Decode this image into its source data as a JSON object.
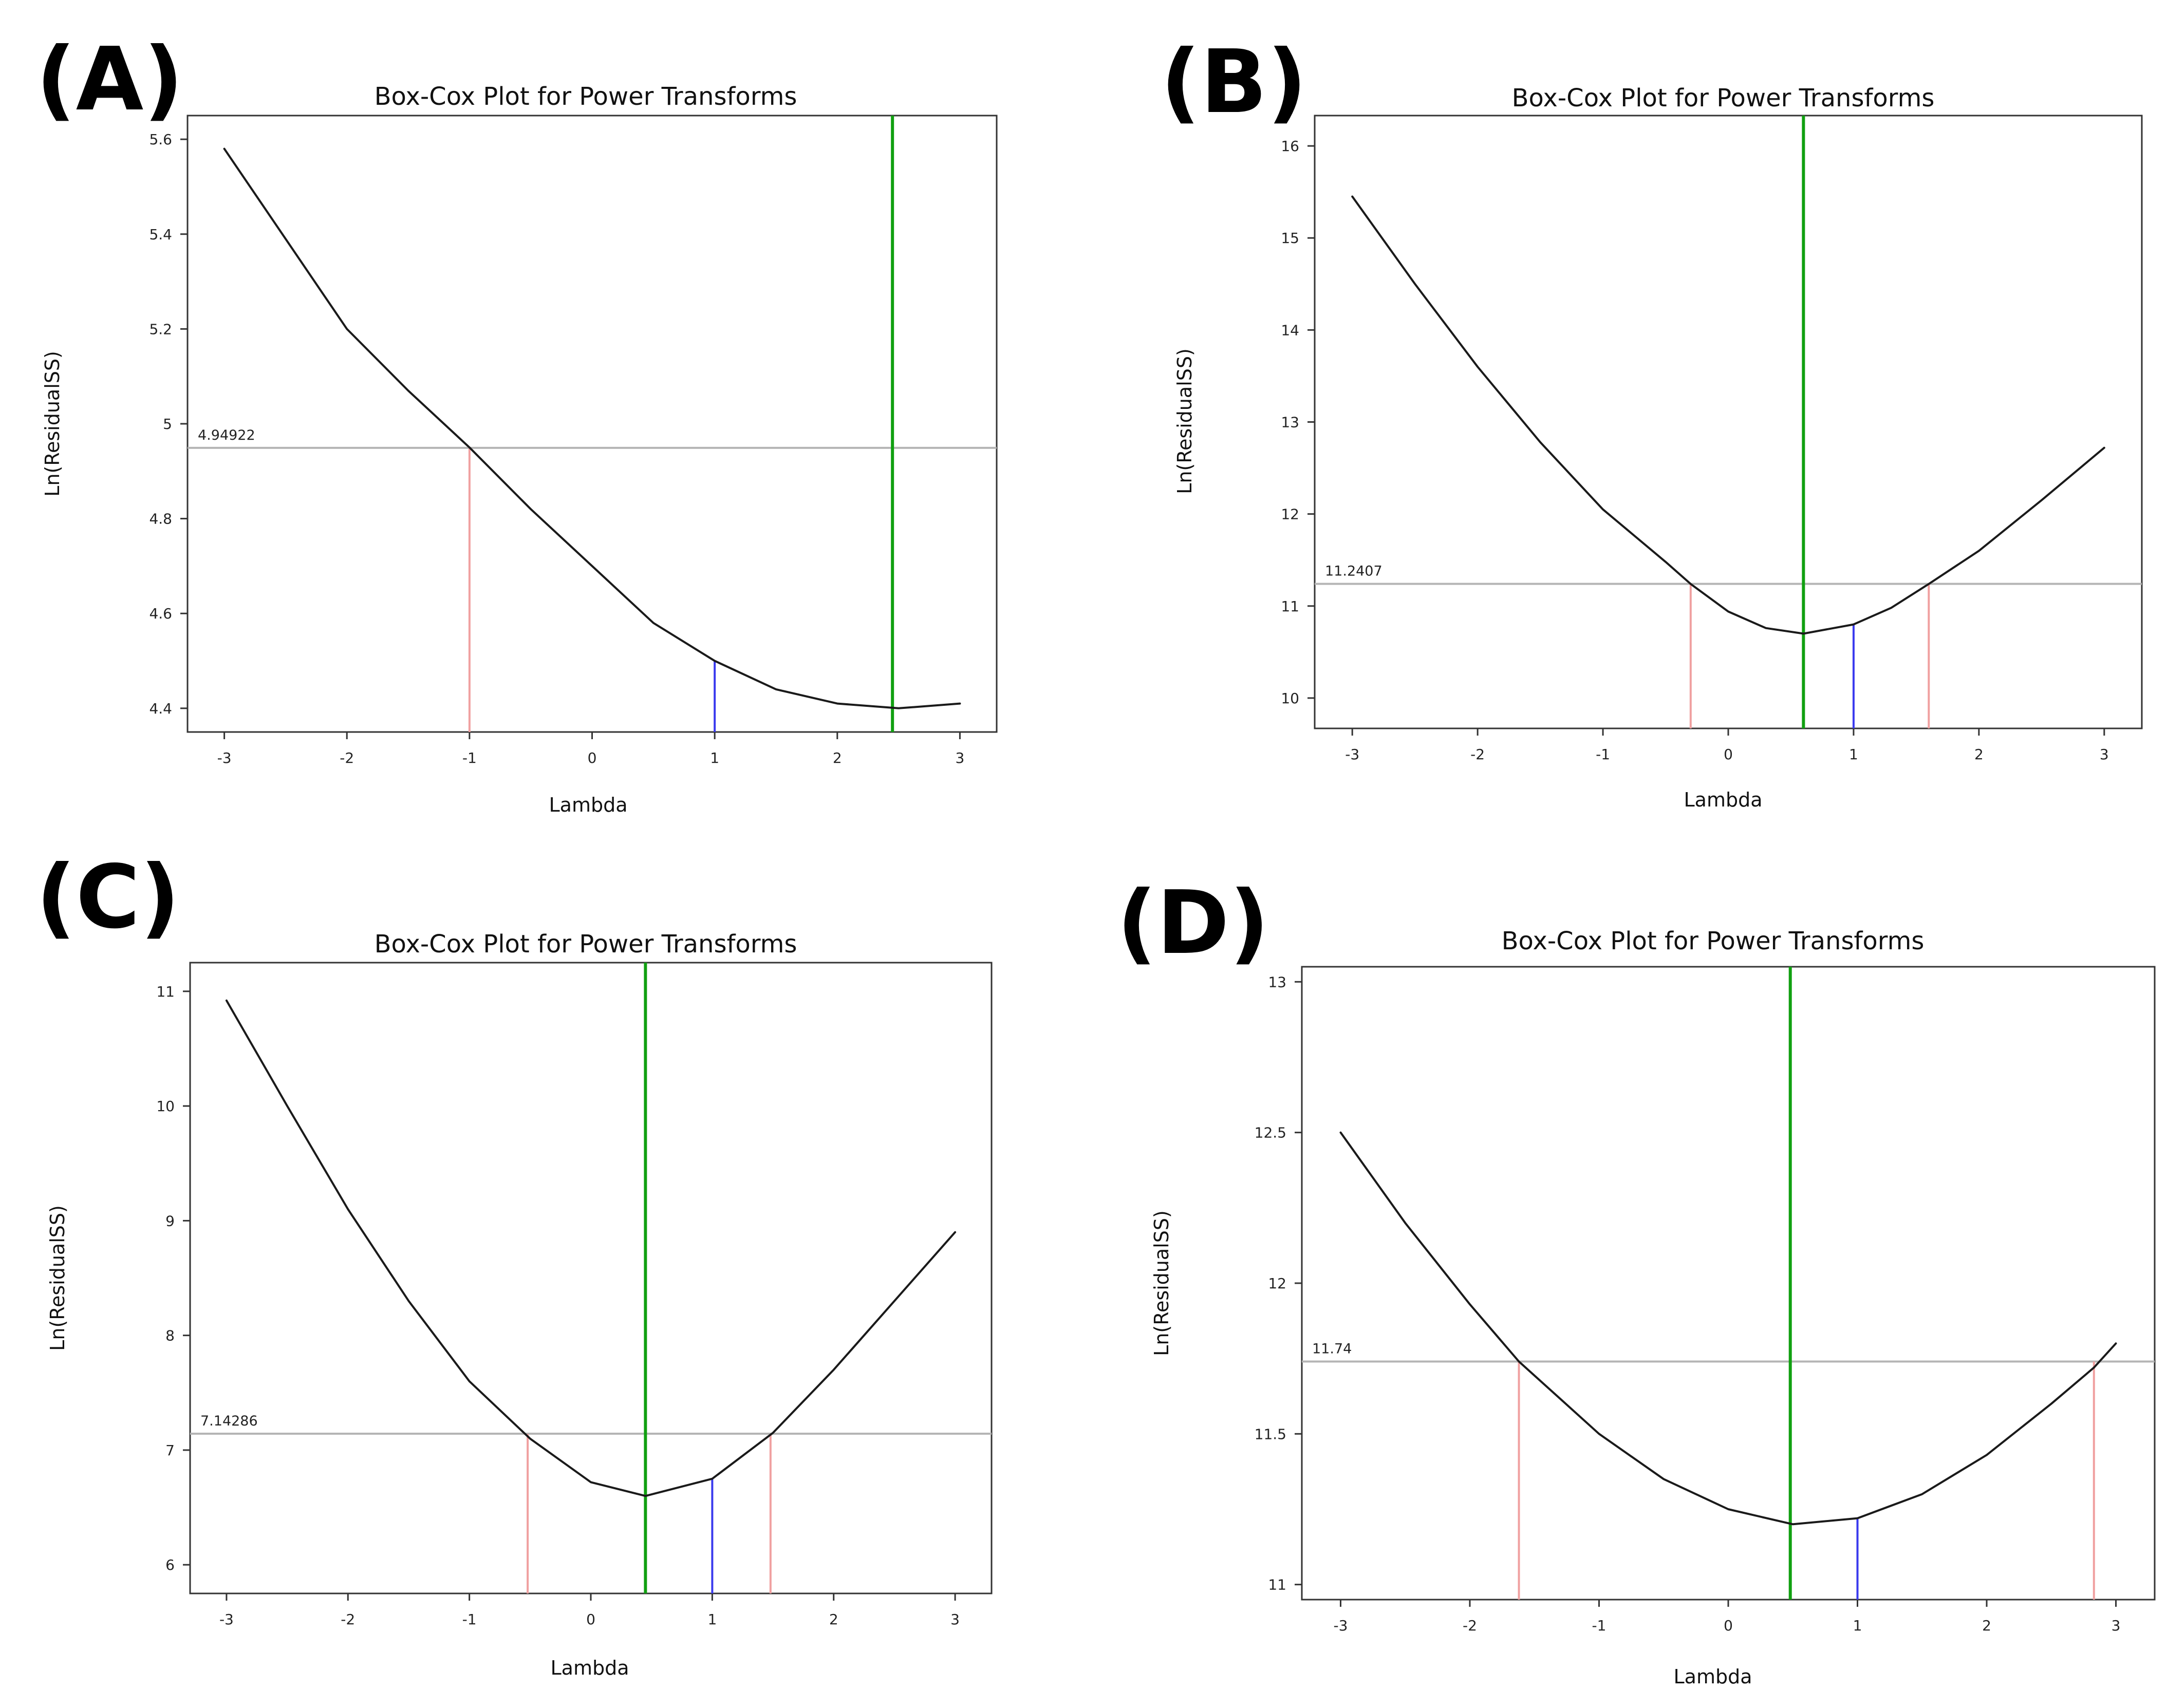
{
  "colors": {
    "curve": "#1a1a1a",
    "best_lambda": "#11a011",
    "current_lambda": "#3a3aee",
    "ci_limits": "#f0a0a0",
    "ref_line": "#b5b5b5",
    "frame": "#333333"
  },
  "chart_data": [
    {
      "panel": "(A)",
      "type": "line",
      "title": "Box-Cox Plot for Power Transforms",
      "xlabel": "Lambda",
      "ylabel": "Ln(ResidualSS)",
      "xlim": [
        -3.3,
        3.3
      ],
      "ylim": [
        4.35,
        5.65
      ],
      "xticks": [
        -3,
        -2,
        -1,
        0,
        1,
        2,
        3
      ],
      "yticks": [
        4.4,
        4.6,
        4.8,
        5,
        5.2,
        5.4,
        5.6
      ],
      "ytick_labels": [
        "4.4",
        "4.6",
        "4.8",
        "5",
        "5.2",
        "5.4",
        "5.6"
      ],
      "curve": {
        "x": [
          -3,
          -2.5,
          -2,
          -1.5,
          -1,
          -0.5,
          0,
          0.5,
          1,
          1.5,
          2,
          2.5,
          3
        ],
        "y": [
          5.58,
          5.39,
          5.2,
          5.07,
          4.95,
          4.82,
          4.7,
          4.58,
          4.5,
          4.44,
          4.41,
          4.4,
          4.41
        ]
      },
      "reference_value": 4.94922,
      "reference_label": "4.94922",
      "best_lambda": 2.45,
      "current_lambda": 1,
      "current_value": 4.5,
      "ci_limits": [
        {
          "x": -1,
          "y": 4.95
        }
      ]
    },
    {
      "panel": "(B)",
      "type": "line",
      "title": "Box-Cox Plot for Power Transforms",
      "xlabel": "Lambda",
      "ylabel": "Ln(ResidualSS)",
      "xlim": [
        -3.3,
        3.3
      ],
      "ylim": [
        9.67,
        16.33
      ],
      "xticks": [
        -3,
        -2,
        -1,
        0,
        1,
        2,
        3
      ],
      "yticks": [
        10,
        11,
        12,
        13,
        14,
        15,
        16
      ],
      "ytick_labels": [
        "10",
        "11",
        "12",
        "13",
        "14",
        "15",
        "16"
      ],
      "curve": {
        "x": [
          -3,
          -2.5,
          -2,
          -1.5,
          -1,
          -0.5,
          -0.3,
          0,
          0.3,
          0.6,
          1,
          1.3,
          1.6,
          2,
          2.5,
          3
        ],
        "y": [
          15.45,
          14.5,
          13.6,
          12.78,
          12.05,
          11.48,
          11.24,
          10.94,
          10.76,
          10.7,
          10.8,
          10.98,
          11.24,
          11.6,
          12.15,
          12.72
        ]
      },
      "reference_value": 11.2407,
      "reference_label": "11.2407",
      "best_lambda": 0.6,
      "current_lambda": 1,
      "current_value": 10.8,
      "ci_limits": [
        {
          "x": -0.3,
          "y": 11.24
        },
        {
          "x": 1.6,
          "y": 11.24
        }
      ]
    },
    {
      "panel": "(C)",
      "type": "line",
      "title": "Box-Cox Plot for Power Transforms",
      "xlabel": "Lambda",
      "ylabel": "Ln(ResidualSS)",
      "xlim": [
        -3.3,
        3.3
      ],
      "ylim": [
        5.75,
        11.25
      ],
      "xticks": [
        -3,
        -2,
        -1,
        0,
        1,
        2,
        3
      ],
      "yticks": [
        6,
        7,
        8,
        9,
        10,
        11
      ],
      "ytick_labels": [
        "6",
        "7",
        "8",
        "9",
        "10",
        "11"
      ],
      "curve": {
        "x": [
          -3,
          -2.5,
          -2,
          -1.5,
          -1,
          -0.5,
          0,
          0.45,
          1,
          1.5,
          2,
          2.5,
          3
        ],
        "y": [
          10.92,
          10.0,
          9.1,
          8.3,
          7.6,
          7.1,
          6.72,
          6.6,
          6.75,
          7.15,
          7.7,
          8.3,
          8.9
        ]
      },
      "reference_value": 7.14286,
      "reference_label": "7.14286",
      "best_lambda": 0.45,
      "current_lambda": 1,
      "current_value": 6.75,
      "ci_limits": [
        {
          "x": -0.52,
          "y": 7.14
        },
        {
          "x": 1.48,
          "y": 7.14
        }
      ]
    },
    {
      "panel": "(D)",
      "type": "line",
      "title": "Box-Cox Plot for Power Transforms",
      "xlabel": "Lambda",
      "ylabel": "Ln(ResidualSS)",
      "xlim": [
        -3.3,
        3.3
      ],
      "ylim": [
        10.95,
        13.05
      ],
      "xticks": [
        -3,
        -2,
        -1,
        0,
        1,
        2,
        3
      ],
      "yticks": [
        11,
        11.5,
        12,
        12.5,
        13
      ],
      "ytick_labels": [
        "11",
        "11.5",
        "12",
        "12.5",
        "13"
      ],
      "curve": {
        "x": [
          -3,
          -2.5,
          -2,
          -1.62,
          -1,
          -0.5,
          0,
          0.5,
          1,
          1.5,
          2,
          2.5,
          2.83,
          3
        ],
        "y": [
          12.5,
          12.2,
          11.93,
          11.74,
          11.5,
          11.35,
          11.25,
          11.2,
          11.22,
          11.3,
          11.43,
          11.6,
          11.72,
          11.8
        ]
      },
      "reference_value": 11.74,
      "reference_label": "11.74",
      "best_lambda": 0.48,
      "current_lambda": 1,
      "current_value": 11.22,
      "ci_limits": [
        {
          "x": -1.62,
          "y": 11.74
        },
        {
          "x": 2.83,
          "y": 11.74
        }
      ]
    }
  ]
}
